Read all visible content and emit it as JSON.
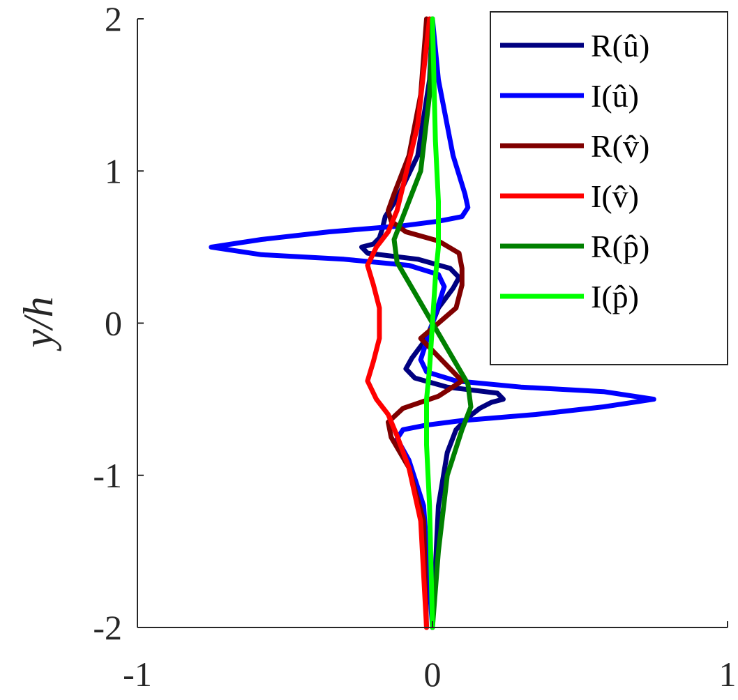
{
  "chart_data": {
    "type": "line",
    "title": "",
    "xlabel": "",
    "ylabel": "y/h",
    "xlim": [
      -1,
      1
    ],
    "ylim": [
      -2,
      2
    ],
    "xticks": [
      "-1",
      "0",
      "1"
    ],
    "yticks": [
      "2",
      "1",
      "0",
      "-1",
      "-2"
    ],
    "xtick_values": [
      -1,
      0,
      1
    ],
    "ytick_values": [
      2,
      1,
      0,
      -1,
      -2
    ],
    "grid": false,
    "legend_position": "top-right",
    "series": [
      {
        "name": "R(û)",
        "color": "#000080",
        "points": [
          [
            0,
            2
          ],
          [
            -0.01,
            1.6
          ],
          [
            -0.05,
            1.1
          ],
          [
            -0.12,
            0.82
          ],
          [
            -0.16,
            0.7
          ],
          [
            -0.17,
            0.62
          ],
          [
            -0.18,
            0.56
          ],
          [
            -0.2,
            0.52
          ],
          [
            -0.24,
            0.5
          ],
          [
            -0.22,
            0.46
          ],
          [
            -0.05,
            0.42
          ],
          [
            0.06,
            0.36
          ],
          [
            0.09,
            0.3
          ],
          [
            0.07,
            0.23
          ],
          [
            0.02,
            0.1
          ],
          [
            0,
            0
          ],
          [
            -0.02,
            -0.1
          ],
          [
            -0.07,
            -0.23
          ],
          [
            -0.09,
            -0.3
          ],
          [
            -0.06,
            -0.36
          ],
          [
            0.05,
            -0.42
          ],
          [
            0.22,
            -0.46
          ],
          [
            0.24,
            -0.5
          ],
          [
            0.2,
            -0.52
          ],
          [
            0.16,
            -0.56
          ],
          [
            0.12,
            -0.62
          ],
          [
            0.08,
            -0.7
          ],
          [
            0.05,
            -0.85
          ],
          [
            0.02,
            -1.2
          ],
          [
            0,
            -2
          ]
        ]
      },
      {
        "name": "I(û)",
        "color": "#0000ff",
        "points": [
          [
            0,
            2
          ],
          [
            0.02,
            1.6
          ],
          [
            0.07,
            1.1
          ],
          [
            0.11,
            0.85
          ],
          [
            0.12,
            0.76
          ],
          [
            0.1,
            0.7
          ],
          [
            0.02,
            0.67
          ],
          [
            -0.1,
            0.64
          ],
          [
            -0.35,
            0.6
          ],
          [
            -0.58,
            0.55
          ],
          [
            -0.75,
            0.5
          ],
          [
            -0.58,
            0.45
          ],
          [
            -0.3,
            0.42
          ],
          [
            -0.08,
            0.38
          ],
          [
            0.02,
            0.32
          ],
          [
            0.04,
            0.24
          ],
          [
            0.02,
            0.12
          ],
          [
            0,
            0
          ],
          [
            -0.02,
            -0.12
          ],
          [
            -0.04,
            -0.24
          ],
          [
            -0.02,
            -0.32
          ],
          [
            0.08,
            -0.38
          ],
          [
            0.3,
            -0.42
          ],
          [
            0.58,
            -0.45
          ],
          [
            0.75,
            -0.5
          ],
          [
            0.58,
            -0.55
          ],
          [
            0.35,
            -0.6
          ],
          [
            0.1,
            -0.64
          ],
          [
            -0.02,
            -0.67
          ],
          [
            -0.1,
            -0.7
          ],
          [
            -0.12,
            -0.76
          ],
          [
            -0.08,
            -0.9
          ],
          [
            -0.03,
            -1.2
          ],
          [
            0,
            -2
          ]
        ]
      },
      {
        "name": "R(v̂)",
        "color": "#800000",
        "points": [
          [
            -0.02,
            2
          ],
          [
            -0.04,
            1.5
          ],
          [
            -0.08,
            1.1
          ],
          [
            -0.13,
            0.85
          ],
          [
            -0.15,
            0.74
          ],
          [
            -0.14,
            0.67
          ],
          [
            -0.09,
            0.6
          ],
          [
            0.02,
            0.54
          ],
          [
            0.09,
            0.46
          ],
          [
            0.1,
            0.36
          ],
          [
            0.1,
            0.25
          ],
          [
            0.08,
            0.1
          ],
          [
            0.02,
            0
          ],
          [
            -0.04,
            -0.1
          ],
          [
            0.1,
            -0.38
          ],
          [
            0.02,
            -0.48
          ],
          [
            -0.1,
            -0.56
          ],
          [
            -0.15,
            -0.65
          ],
          [
            -0.14,
            -0.75
          ],
          [
            -0.08,
            -0.95
          ],
          [
            -0.03,
            -1.3
          ],
          [
            -0.02,
            -2
          ]
        ]
      },
      {
        "name": "I(v̂)",
        "color": "#ff0000",
        "points": [
          [
            -0.01,
            2
          ],
          [
            -0.05,
            1.3
          ],
          [
            -0.1,
            0.9
          ],
          [
            -0.12,
            0.74
          ],
          [
            -0.15,
            0.6
          ],
          [
            -0.19,
            0.5
          ],
          [
            -0.22,
            0.38
          ],
          [
            -0.2,
            0.25
          ],
          [
            -0.18,
            0.1
          ],
          [
            -0.18,
            -0.1
          ],
          [
            -0.2,
            -0.25
          ],
          [
            -0.22,
            -0.38
          ],
          [
            -0.19,
            -0.5
          ],
          [
            -0.15,
            -0.6
          ],
          [
            -0.12,
            -0.74
          ],
          [
            -0.08,
            -0.95
          ],
          [
            -0.04,
            -1.3
          ],
          [
            -0.02,
            -2
          ]
        ]
      },
      {
        "name": "R(p̂)",
        "color": "#008000",
        "points": [
          [
            0,
            2
          ],
          [
            -0.01,
            1.5
          ],
          [
            -0.04,
            1.0
          ],
          [
            -0.1,
            0.7
          ],
          [
            -0.13,
            0.55
          ],
          [
            -0.12,
            0.4
          ],
          [
            -0.06,
            0.2
          ],
          [
            0,
            0
          ],
          [
            0.06,
            -0.2
          ],
          [
            0.12,
            -0.4
          ],
          [
            0.13,
            -0.55
          ],
          [
            0.1,
            -0.7
          ],
          [
            0.05,
            -1.0
          ],
          [
            0.02,
            -1.5
          ],
          [
            0,
            -2
          ]
        ]
      },
      {
        "name": "I(p̂)",
        "color": "#00ff00",
        "points": [
          [
            0,
            2
          ],
          [
            0.01,
            1.2
          ],
          [
            0.02,
            0.8
          ],
          [
            0.02,
            0.5
          ],
          [
            0.01,
            0.3
          ],
          [
            0,
            0
          ],
          [
            -0.01,
            -0.3
          ],
          [
            -0.02,
            -0.5
          ],
          [
            -0.02,
            -0.8
          ],
          [
            -0.01,
            -1.2
          ],
          [
            0,
            -2
          ]
        ]
      }
    ]
  }
}
